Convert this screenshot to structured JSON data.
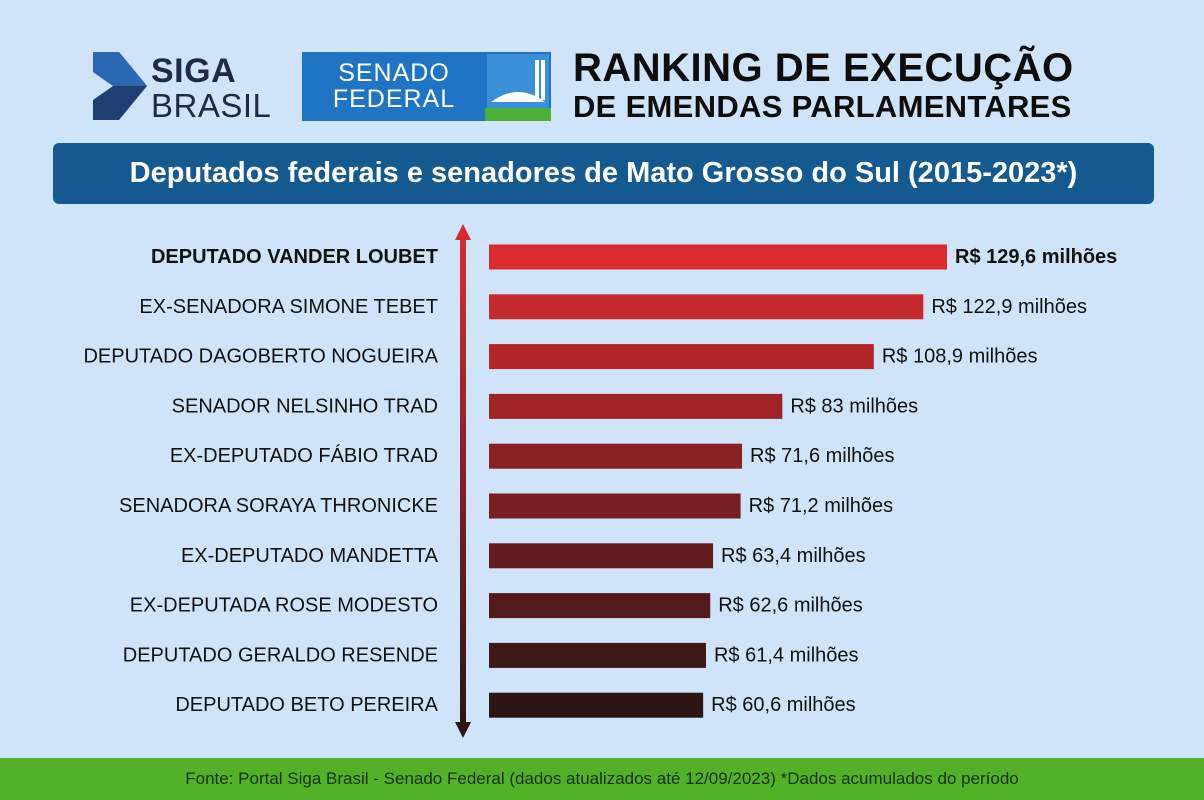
{
  "header": {
    "siga_line1": "SIGA",
    "siga_line2": "BRASIL",
    "senado_line1": "SENADO",
    "senado_line2": "FEDERAL",
    "title_line1": "RANKING DE EXECUÇÃO",
    "title_line2": "DE EMENDAS PARLAMENTARES"
  },
  "subtitle": "Deputados federais e senadores de Mato Grosso do Sul (2015-2023*)",
  "chart_data": {
    "type": "bar",
    "orientation": "horizontal",
    "categories": [
      "DEPUTADO VANDER LOUBET",
      "EX-SENADORA SIMONE TEBET",
      "DEPUTADO DAGOBERTO NOGUEIRA",
      "SENADOR NELSINHO TRAD",
      "EX-DEPUTADO FÁBIO TRAD",
      "SENADORA SORAYA THRONICKE",
      "EX-DEPUTADO MANDETTA",
      "EX-DEPUTADA ROSE MODESTO",
      "DEPUTADO GERALDO RESENDE",
      "DEPUTADO BETO PEREIRA"
    ],
    "values": [
      129.6,
      122.9,
      108.9,
      83,
      71.6,
      71.2,
      63.4,
      62.6,
      61.4,
      60.6
    ],
    "value_labels": [
      "R$ 129,6 milhões",
      "R$ 122,9 milhões",
      "R$ 108,9 milhões",
      "R$ 83 milhões",
      "R$ 71,6 milhões",
      "R$ 71,2 milhões",
      "R$ 63,4 milhões",
      "R$ 62,6 milhões",
      "R$ 61,4 milhões",
      "R$ 60,6 milhões"
    ],
    "highlight_index": 0,
    "color_top": "#d92b2f",
    "color_bottom": "#2b1515",
    "grid": false
  },
  "footer": "Fonte: Portal Siga Brasil - Senado Federal (dados atualizados até 12/09/2023) *Dados acumulados do período",
  "colors": {
    "background": "#cfe4f8",
    "subtitle_bar": "#145a91",
    "senado_blue": "#1f74c4",
    "footer_green": "#52b127",
    "siga_dark": "#1f2a44"
  }
}
